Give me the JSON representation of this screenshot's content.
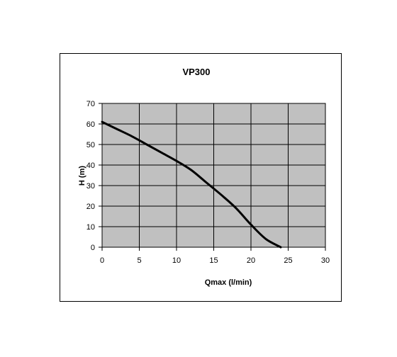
{
  "chart_data": {
    "type": "line",
    "title": "VP300",
    "xlabel": "Qmax (l/min)",
    "ylabel": "H (m)",
    "xlim": [
      0,
      30
    ],
    "ylim": [
      0,
      70
    ],
    "x_ticks": [
      0,
      5,
      10,
      15,
      20,
      25,
      30
    ],
    "y_ticks": [
      0,
      10,
      20,
      30,
      40,
      50,
      60,
      70
    ],
    "grid": true,
    "legend": "none",
    "colors": {
      "plot_background": "#c0c0c0",
      "grid": "#000000",
      "line": "#000000",
      "frame": "#000000"
    },
    "series": [
      {
        "x": [
          0,
          2,
          4,
          6,
          8,
          10,
          12,
          14,
          16,
          18,
          20,
          22,
          24
        ],
        "y": [
          61,
          57.5,
          54,
          50,
          46,
          42,
          37.5,
          31.5,
          25.5,
          19,
          11,
          4,
          0
        ]
      }
    ]
  }
}
